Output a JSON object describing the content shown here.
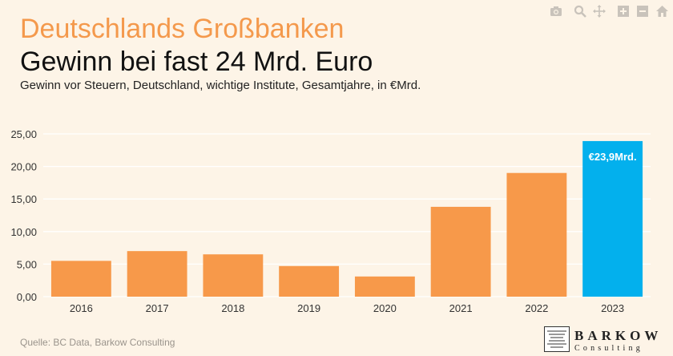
{
  "header": {
    "kicker": "Deutschlands Großbanken",
    "title": "Gewinn bei fast 24 Mrd. Euro",
    "subtitle": "Gewinn vor Steuern, Deutschland, wichtige Institute, Gesamtjahre, in €Mrd."
  },
  "source": "Quelle: BC Data, Barkow Consulting",
  "logo": {
    "name": "BARKOW",
    "sub": "Consulting"
  },
  "toolbar": [
    "camera-icon",
    "zoom-icon",
    "pan-icon",
    "zoom-in-icon",
    "zoom-out-icon",
    "home-icon"
  ],
  "colors": {
    "bar": "#f7994a",
    "highlight": "#03b0ed",
    "background": "#fdf4e7"
  },
  "chart_data": {
    "type": "bar",
    "categories": [
      "2016",
      "2017",
      "2018",
      "2019",
      "2020",
      "2021",
      "2022",
      "2023"
    ],
    "values": [
      5.5,
      7.0,
      6.5,
      4.7,
      3.1,
      13.8,
      19.0,
      23.9
    ],
    "highlight_index": 7,
    "highlight_label": "€23,9Mrd.",
    "ylim": [
      0,
      25
    ],
    "yticks": [
      "0,00",
      "5,00",
      "10,00",
      "15,00",
      "20,00",
      "25,00"
    ],
    "ytick_values": [
      0,
      5,
      10,
      15,
      20,
      25
    ],
    "grid": true,
    "xlabel": "",
    "ylabel": ""
  }
}
